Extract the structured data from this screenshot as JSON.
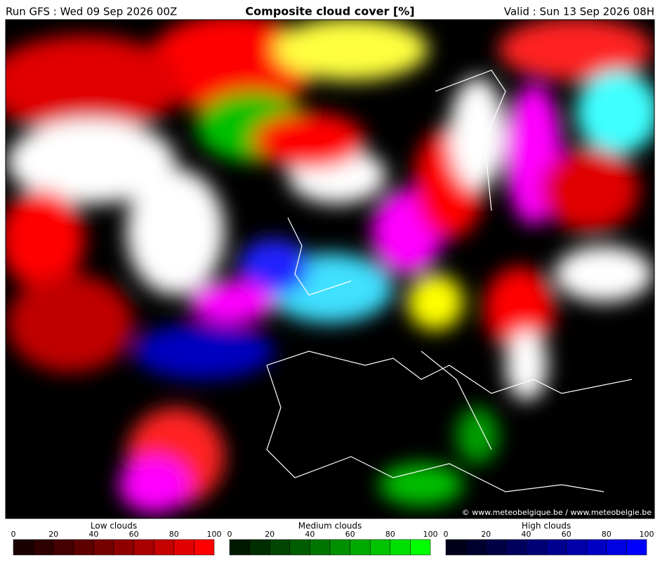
{
  "header": {
    "run": "Run GFS : Wed 09 Sep 2026 00Z",
    "title": "Composite cloud cover [%]",
    "valid": "Valid : Sun 13 Sep 2026 08H"
  },
  "credit": "© www.meteobelgique.be / www.meteobelgie.be",
  "colorbars": [
    {
      "title": "Low clouds",
      "ticks": [
        0,
        20,
        40,
        60,
        80,
        100
      ],
      "colors": [
        "#1a0000",
        "#2e0000",
        "#450000",
        "#5c0000",
        "#760000",
        "#900000",
        "#aa0000",
        "#c40000",
        "#e00000",
        "#ff0000"
      ]
    },
    {
      "title": "Medium clouds",
      "ticks": [
        0,
        20,
        40,
        60,
        80,
        100
      ],
      "colors": [
        "#001a00",
        "#002e00",
        "#004500",
        "#005c00",
        "#007600",
        "#009000",
        "#00aa00",
        "#00c400",
        "#00e000",
        "#00ff00"
      ]
    },
    {
      "title": "High clouds",
      "ticks": [
        0,
        20,
        40,
        60,
        80,
        100
      ],
      "colors": [
        "#00001a",
        "#00002e",
        "#000045",
        "#00005c",
        "#000076",
        "#000090",
        "#0000aa",
        "#0000c4",
        "#0000e0",
        "#0000ff"
      ]
    }
  ]
}
